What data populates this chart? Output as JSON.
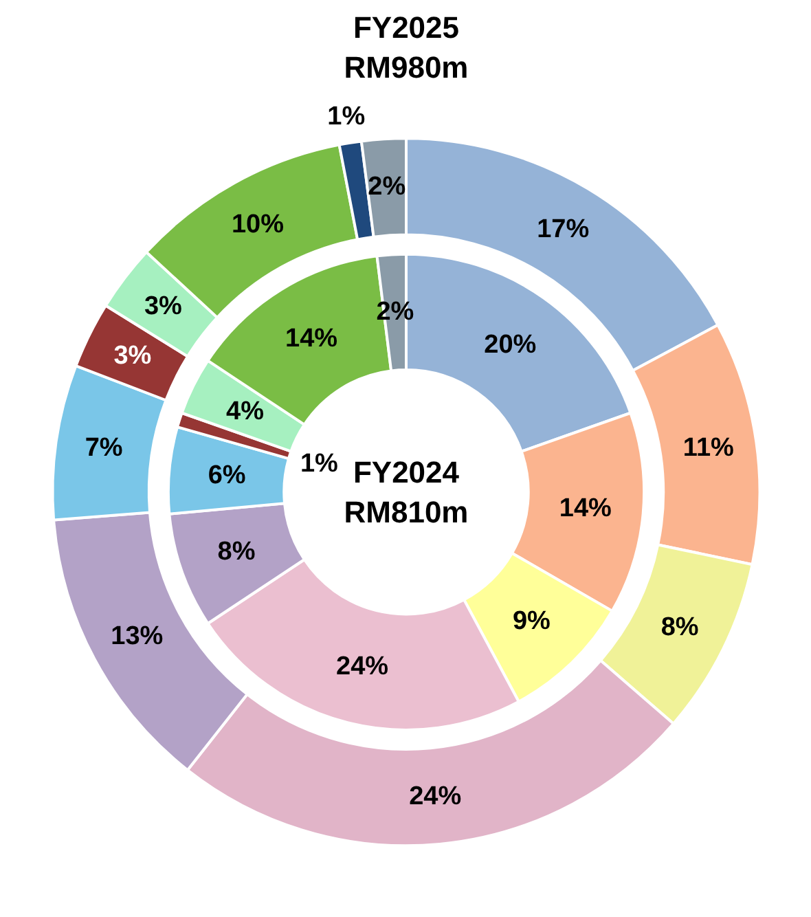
{
  "chart_data": {
    "type": "donut",
    "categories": [
      null,
      null,
      null,
      null,
      null,
      null,
      null,
      null,
      null,
      null,
      null
    ],
    "series": [
      {
        "name": "FY2025\nRM980m",
        "values": [
          17,
          11,
          8,
          24,
          13,
          7,
          3,
          3,
          10,
          1,
          2
        ],
        "value_labels": [
          "17%",
          "11%",
          "8%",
          "24%",
          "13%",
          "7%",
          "3%",
          "3%",
          "10%",
          "1%",
          "2%"
        ],
        "colors": [
          "#95b3d7",
          "#fbb48f",
          "#f0f298",
          "#e1b4c8",
          "#b3a2c7",
          "#7ac6e8",
          "#963634",
          "#a6f0c0",
          "#7abd45",
          "#1f497d",
          "#8a9ba8"
        ]
      },
      {
        "name": "FY2024\nRM810m",
        "values": [
          20,
          14,
          9,
          24,
          8,
          6,
          1,
          4,
          14,
          null,
          2
        ],
        "value_labels": [
          "20%",
          "14%",
          "9%",
          "24%",
          "8%",
          "6%",
          "1%",
          "4%",
          "14%",
          null,
          "2%"
        ],
        "colors": [
          "#95b3d7",
          "#fbb48f",
          "#ffff99",
          "#ebbfd0",
          "#b3a2c7",
          "#7ac6e8",
          "#963634",
          "#a6f0c0",
          "#7abd45",
          "#1f497d",
          "#8a9ba8"
        ]
      }
    ]
  }
}
